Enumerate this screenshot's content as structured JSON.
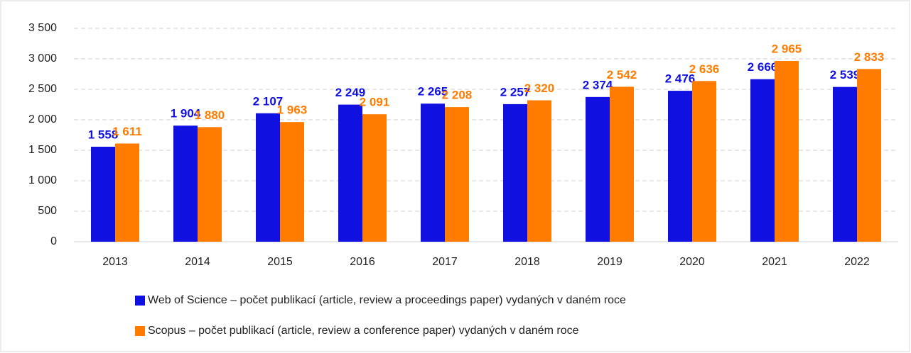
{
  "chart_data": {
    "type": "bar",
    "categories": [
      "2013",
      "2014",
      "2015",
      "2016",
      "2017",
      "2018",
      "2019",
      "2020",
      "2021",
      "2022"
    ],
    "series": [
      {
        "name": "Web of Science – počet publikací (article, review a proceedings paper) vydaných v daném roce",
        "color": "#1010e0",
        "values": [
          1558,
          1904,
          2107,
          2249,
          2265,
          2257,
          2374,
          2476,
          2666,
          2539
        ],
        "value_labels": [
          "1 558",
          "1 904",
          "2 107",
          "2 249",
          "2 265",
          "2 257",
          "2 374",
          "2 476",
          "2 666",
          "2 539"
        ]
      },
      {
        "name": "Scopus – počet publikací (article, review a conference paper) vydaných v daném roce",
        "color": "#ff7c00",
        "values": [
          1611,
          1880,
          1963,
          2091,
          2208,
          2320,
          2542,
          2636,
          2965,
          2833
        ],
        "value_labels": [
          "1 611",
          "1 880",
          "1 963",
          "2 091",
          "2 208",
          "2 320",
          "2 542",
          "2 636",
          "2 965",
          "2 833"
        ]
      }
    ],
    "ylim": [
      0,
      3500
    ],
    "yticks": [
      0,
      500,
      {
        "value": 1000,
        "label": "1 000"
      },
      {
        "value": 1500,
        "label": "1 500"
      },
      {
        "value": 2000,
        "label": "2 000"
      },
      {
        "value": 2500,
        "label": "2 500"
      },
      {
        "value": 3000,
        "label": "3 000"
      },
      {
        "value": 3500,
        "label": "3 500"
      }
    ],
    "grid": true,
    "legend": "bottom"
  }
}
